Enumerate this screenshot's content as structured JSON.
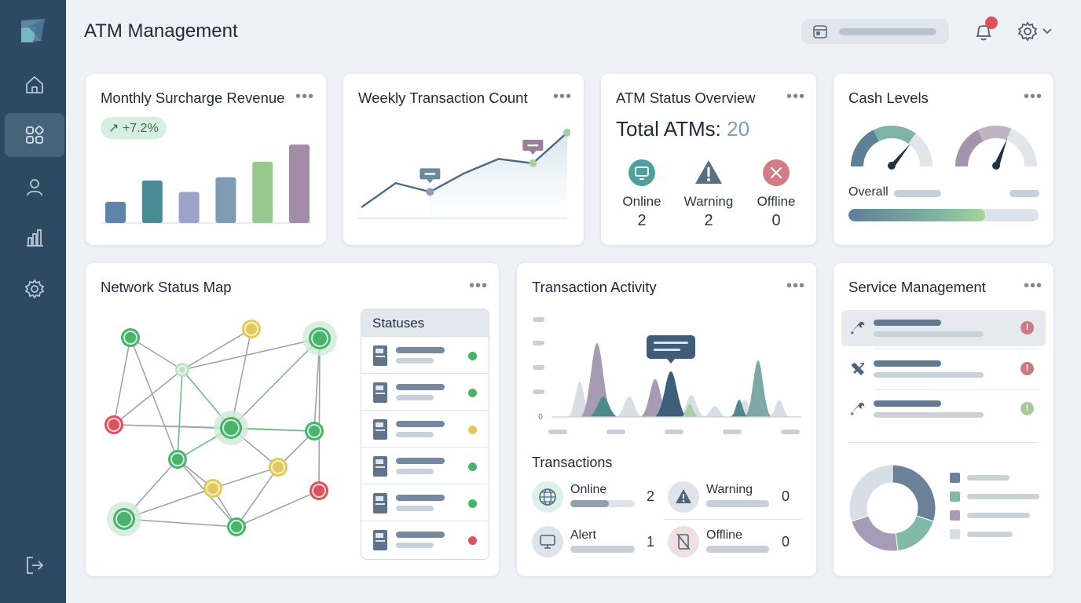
{
  "app": {
    "title": "ATM Management"
  },
  "sidebar": {
    "logo": "app-logo",
    "items": [
      {
        "name": "home",
        "icon": "home-icon"
      },
      {
        "name": "dashboard",
        "icon": "grid-icon",
        "active": true
      },
      {
        "name": "users",
        "icon": "user-icon"
      },
      {
        "name": "reports",
        "icon": "bar-chart-icon"
      },
      {
        "name": "settings",
        "icon": "gear-icon"
      }
    ],
    "logout_icon": "logout-icon"
  },
  "colors": {
    "sidebar": "#2e4a62",
    "accent_blue": "#5b7c99",
    "teal": "#4f8a8b",
    "green": "#49b36c",
    "yellow": "#e3c95a",
    "red": "#d9545e",
    "lavender": "#a7a0c0"
  },
  "revenue": {
    "title": "Monthly Surcharge Revenue",
    "change": "+7.2%",
    "chart_data": {
      "type": "bar",
      "values": [
        26,
        52,
        38,
        56,
        75,
        96
      ],
      "colors": [
        "#5e84ab",
        "#4a8c95",
        "#9aa3c9",
        "#7f9cb2",
        "#97c98e",
        "#a28ca8"
      ]
    }
  },
  "weekly": {
    "title": "Weekly Transaction Count",
    "chart_data": {
      "type": "line",
      "values": [
        10,
        32,
        24,
        41,
        54,
        50,
        78
      ]
    }
  },
  "status": {
    "title": "ATM Status Overview",
    "total_label": "Total ATMs:",
    "total_value": "20",
    "items": [
      {
        "label": "Online",
        "value": "2",
        "icon": "monitor-icon"
      },
      {
        "label": "Warning",
        "value": "2",
        "icon": "warning-icon"
      },
      {
        "label": "Offline",
        "value": "0",
        "icon": "close-icon"
      }
    ]
  },
  "cash": {
    "title": "Cash Levels",
    "overall_label": "Overall",
    "gauges": [
      0.72,
      0.62
    ],
    "overall_fill": 0.72
  },
  "network": {
    "title": "Network Status Map",
    "statuses_title": "Statuses",
    "status_rows": [
      "#49b36c",
      "#49b36c",
      "#e3c95a",
      "#49b36c",
      "#49b36c",
      "#d9545e"
    ]
  },
  "activity": {
    "title": "Transaction Activity",
    "axis_zero": "0",
    "transactions_title": "Transactions",
    "tx": [
      {
        "label": "Online",
        "value": "2",
        "icon": "globe-icon",
        "fill": 0.6
      },
      {
        "label": "Warning",
        "value": "0",
        "icon": "warning-icon",
        "fill": 1.0
      },
      {
        "label": "Alert",
        "value": "1",
        "icon": "monitor-icon",
        "fill": 1.0
      },
      {
        "label": "Offline",
        "value": "0",
        "icon": "atm-offline-icon",
        "fill": 1.0
      }
    ]
  },
  "service": {
    "title": "Service Management",
    "items": [
      {
        "icon": "wrench-icon",
        "status_color": "#c97a85"
      },
      {
        "icon": "tools-icon",
        "status_color": "#c97a85"
      },
      {
        "icon": "wrench-icon",
        "status_color": "#a9c99d"
      }
    ],
    "donut": {
      "values": [
        30,
        18,
        22,
        30
      ],
      "colors": [
        "#6b8197",
        "#84b8a6",
        "#a79bb8",
        "#d7dee6"
      ]
    }
  }
}
